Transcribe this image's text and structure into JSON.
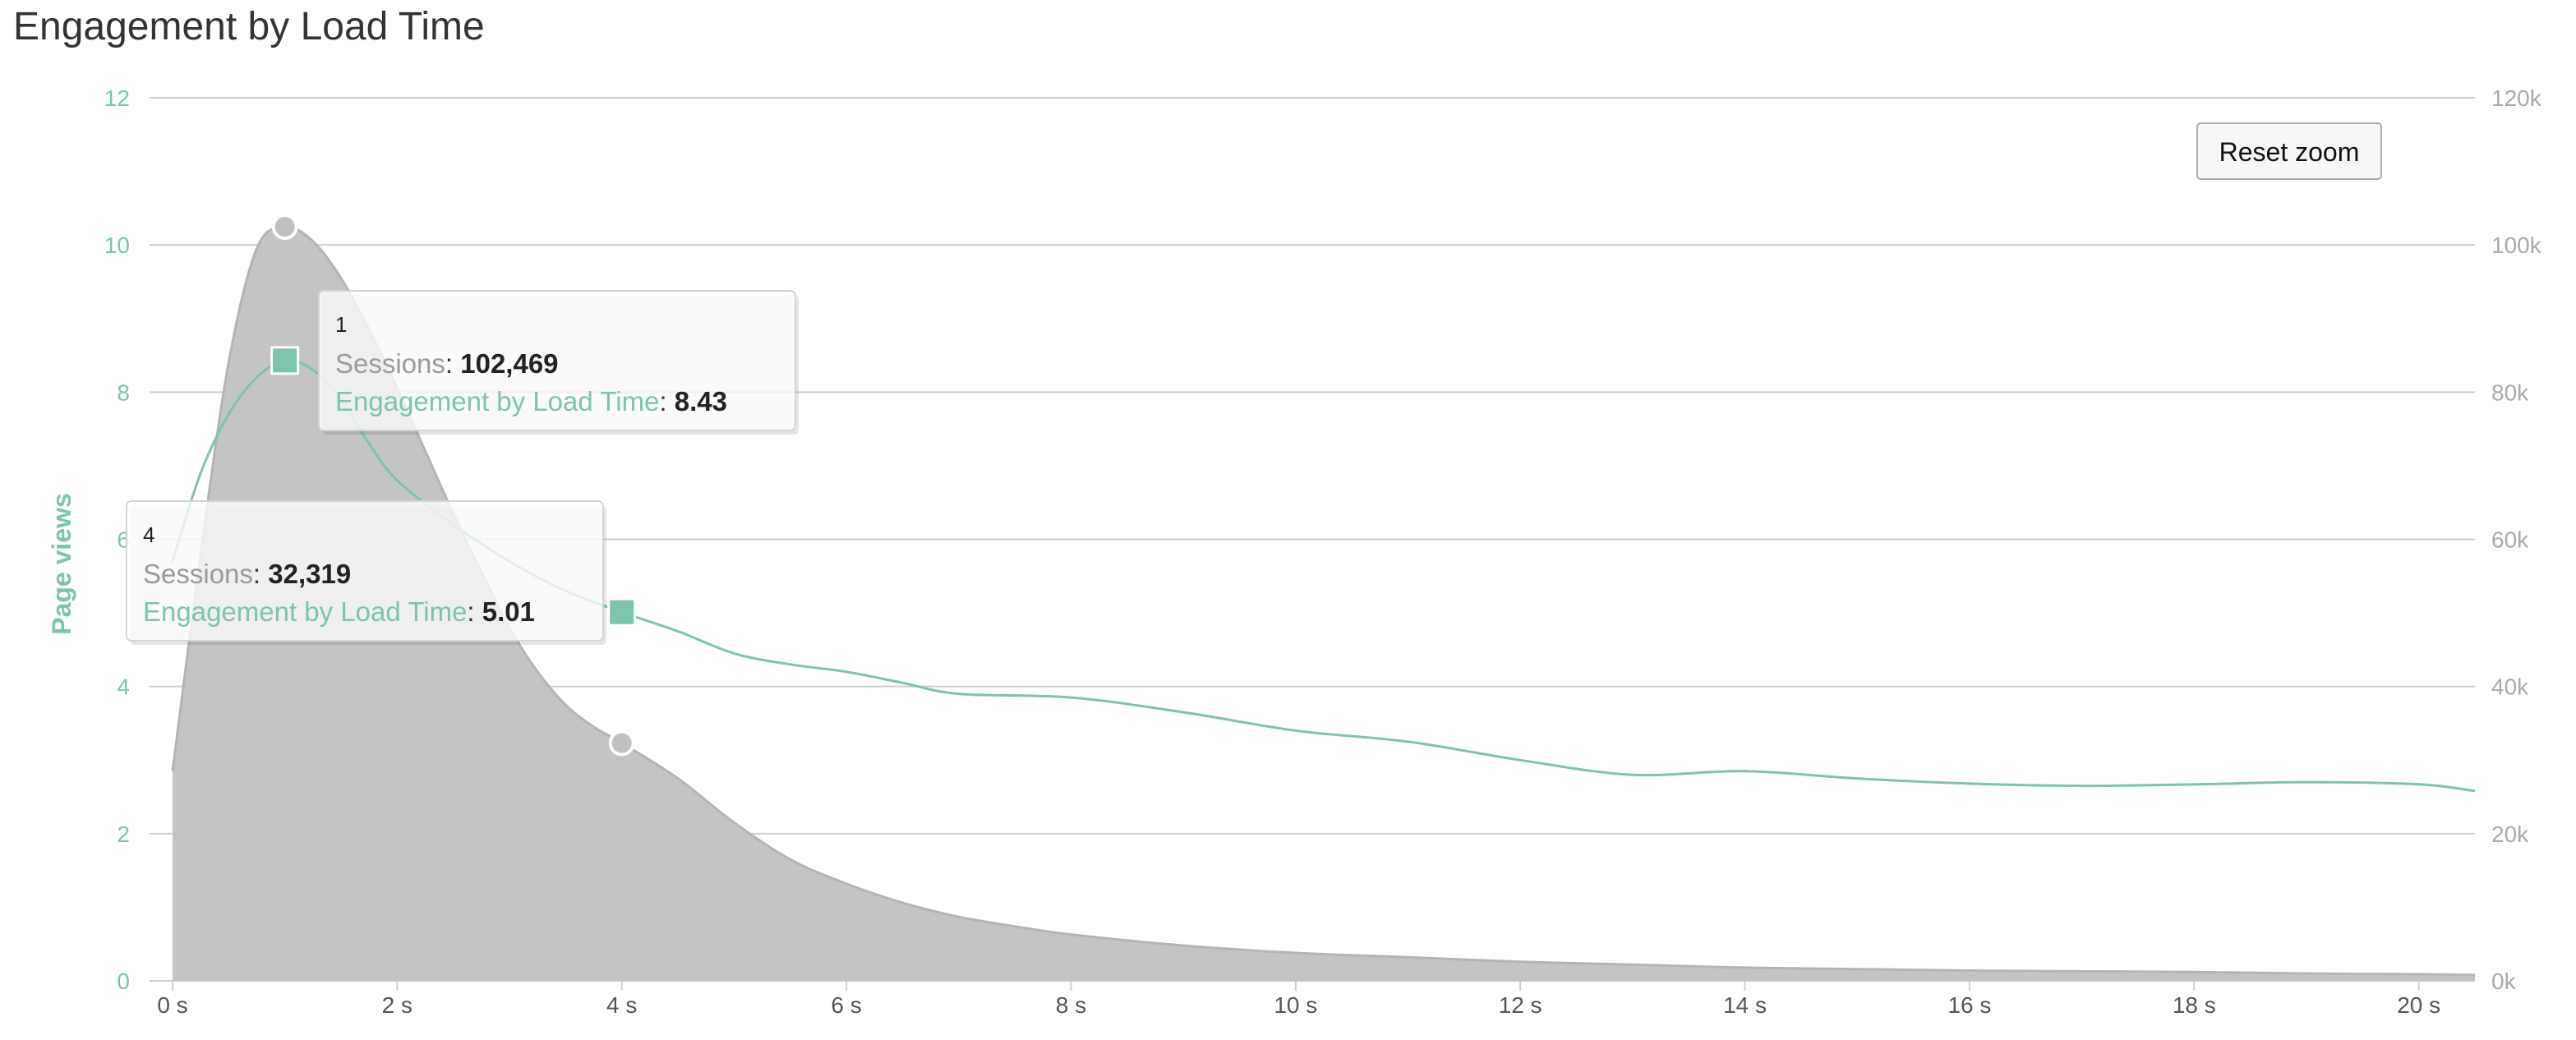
{
  "colors": {
    "sessions_fill": "#c4c4c4",
    "sessions_stroke": "#b4b4b4",
    "engagement": "#7cc4aa",
    "left_axis": "#7cc4aa",
    "right_axis": "#aaaaaa",
    "grid": "#cfcfcf"
  },
  "reset_zoom_label": "Reset zoom",
  "chart_data": {
    "type": "area",
    "title": "Engagement by Load Time",
    "xlabel": "",
    "x_unit_suffix": " s",
    "xlim": [
      0,
      20.5
    ],
    "x_ticks": [
      0,
      2,
      4,
      6,
      8,
      10,
      12,
      14,
      16,
      18,
      20
    ],
    "x_tick_labels": [
      "0 s",
      "2 s",
      "4 s",
      "6 s",
      "8 s",
      "10 s",
      "12 s",
      "14 s",
      "16 s",
      "18 s",
      "20 s"
    ],
    "y_left": {
      "title": "Page views",
      "lim": [
        0,
        12
      ],
      "ticks": [
        0,
        2,
        4,
        6,
        8,
        10,
        12
      ],
      "tick_labels": [
        "0",
        "2",
        "4",
        "6",
        "8",
        "10",
        "12"
      ]
    },
    "y_right": {
      "lim": [
        0,
        120000
      ],
      "ticks": [
        0,
        20000,
        40000,
        60000,
        80000,
        100000,
        120000
      ],
      "tick_labels": [
        "0k",
        "20k",
        "40k",
        "60k",
        "80k",
        "100k",
        "120k"
      ]
    },
    "grid": true,
    "series": [
      {
        "name": "Sessions",
        "type": "area",
        "axis": "right",
        "x": [
          0,
          0.25,
          0.5,
          0.75,
          1.0,
          1.25,
          1.5,
          1.75,
          2.0,
          2.25,
          2.5,
          2.75,
          3.0,
          3.25,
          3.5,
          3.75,
          4.0,
          4.5,
          5.0,
          5.5,
          6.0,
          6.5,
          7.0,
          7.5,
          8.0,
          9.0,
          10.0,
          11.0,
          12.0,
          13.0,
          14.0,
          15.0,
          16.0,
          17.0,
          18.0,
          19.0,
          20.0,
          20.5
        ],
        "values": [
          28500,
          58000,
          84000,
          99500,
          102469,
          100500,
          95500,
          88500,
          80500,
          72000,
          63500,
          55500,
          48000,
          42000,
          37500,
          34500,
          32319,
          27500,
          21500,
          16500,
          13200,
          10600,
          8700,
          7400,
          6300,
          4800,
          3800,
          3200,
          2600,
          2200,
          1800,
          1600,
          1400,
          1300,
          1200,
          1000,
          900,
          800
        ]
      },
      {
        "name": "Engagement by Load Time",
        "type": "line",
        "axis": "left",
        "x": [
          0,
          0.25,
          0.5,
          0.75,
          1.0,
          1.25,
          1.5,
          1.75,
          2.0,
          2.5,
          3.0,
          3.5,
          4.0,
          4.5,
          5.0,
          5.5,
          6.0,
          6.5,
          7.0,
          8.0,
          9.0,
          10.0,
          11.0,
          12.0,
          13.0,
          14.0,
          15.0,
          16.0,
          17.0,
          18.0,
          19.0,
          20.0,
          20.5
        ],
        "values": [
          5.7,
          6.9,
          7.7,
          8.2,
          8.43,
          8.3,
          7.9,
          7.3,
          6.8,
          6.2,
          5.7,
          5.3,
          5.01,
          4.75,
          4.45,
          4.3,
          4.2,
          4.05,
          3.9,
          3.85,
          3.65,
          3.4,
          3.25,
          3.0,
          2.8,
          2.85,
          2.75,
          2.68,
          2.65,
          2.67,
          2.7,
          2.67,
          2.58
        ]
      }
    ],
    "markers": [
      {
        "series": "Sessions",
        "x": 1,
        "value": 102469
      },
      {
        "series": "Sessions",
        "x": 4,
        "value": 32319
      },
      {
        "series": "Engagement by Load Time",
        "x": 1,
        "value": 8.43
      },
      {
        "series": "Engagement by Load Time",
        "x": 4,
        "value": 5.01
      }
    ],
    "tooltips": [
      {
        "header": "1",
        "sessions_label": "Sessions",
        "sessions_value": "102,469",
        "engagement_label": "Engagement by Load Time",
        "engagement_value": "8.43"
      },
      {
        "header": "4",
        "sessions_label": "Sessions",
        "sessions_value": "32,319",
        "engagement_label": "Engagement by Load Time",
        "engagement_value": "5.01"
      }
    ]
  }
}
